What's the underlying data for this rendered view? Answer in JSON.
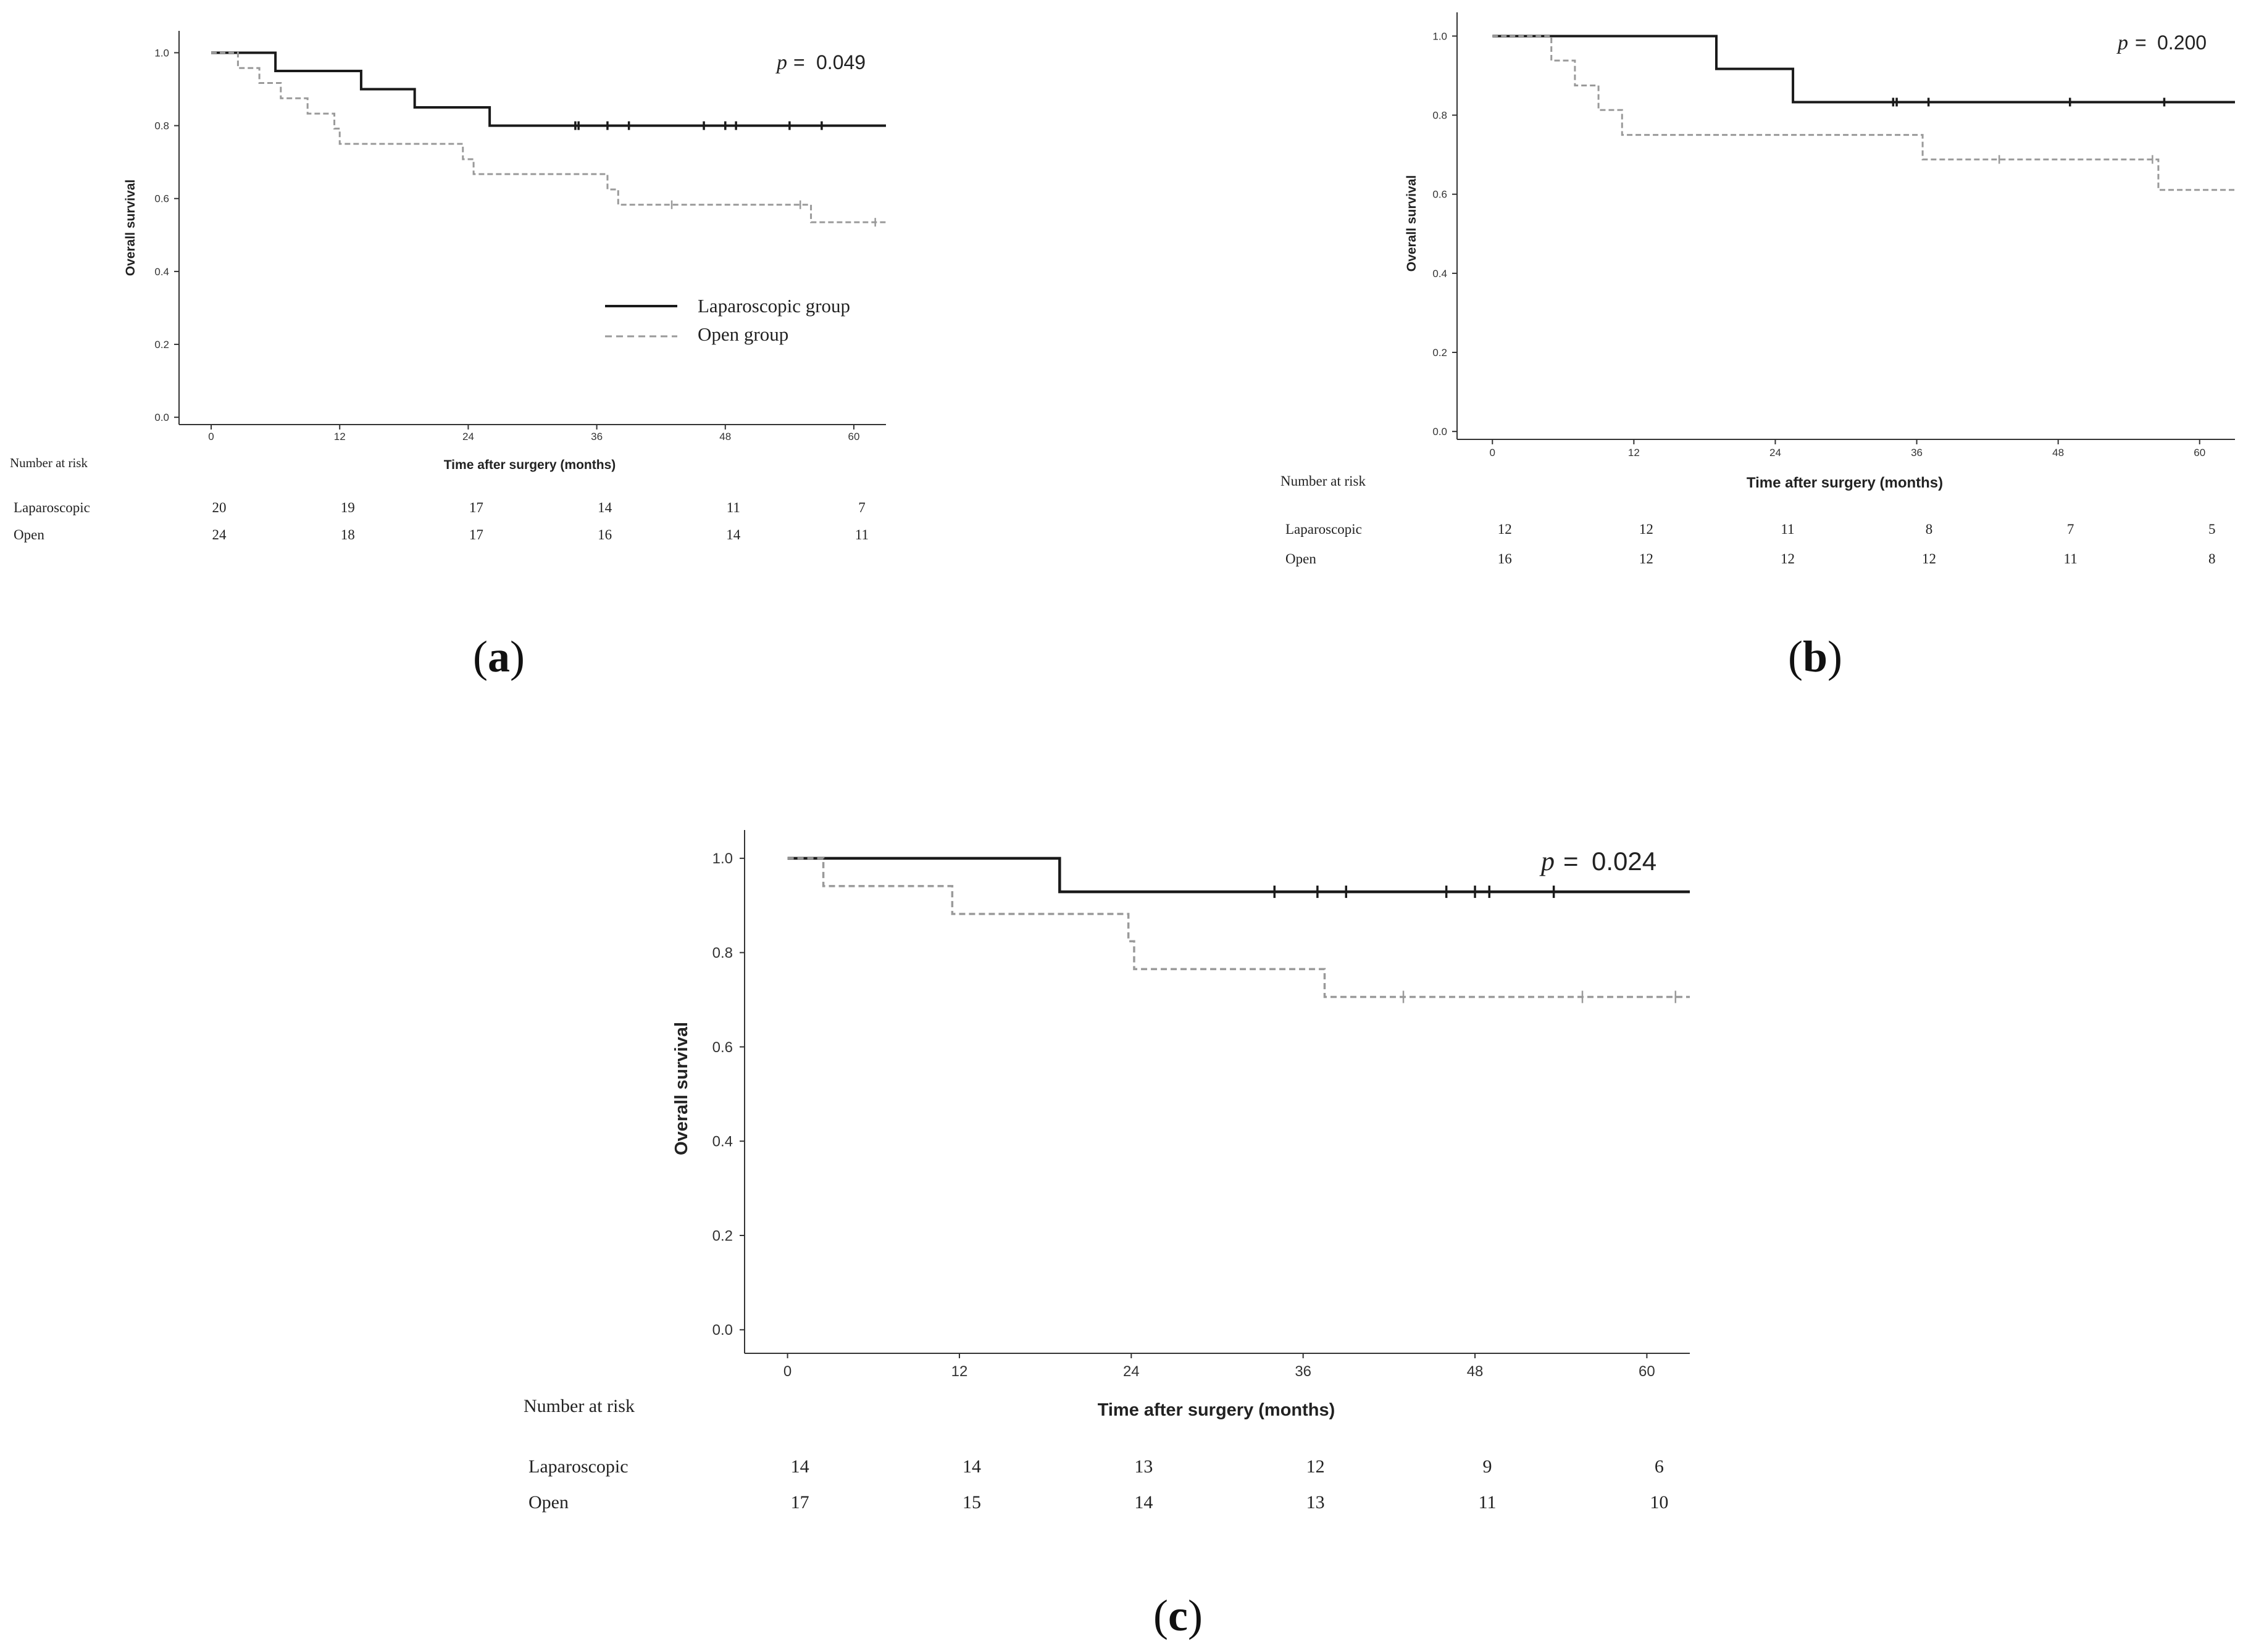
{
  "chart_data": [
    {
      "type": "line",
      "panel_label": "a",
      "title": "",
      "xlabel": "Time after surgery (months)",
      "ylabel": "Overall survival",
      "p_value": "0.049",
      "p_symbol": "p",
      "xlim": [
        -3,
        63
      ],
      "ylim": [
        -0.02,
        1.06
      ],
      "x_ticks": [
        "0",
        "12",
        "24",
        "36",
        "48",
        "60"
      ],
      "y_ticks": [
        "0.0",
        "0.2",
        "0.4",
        "0.6",
        "0.8",
        "1.0"
      ],
      "legend": {
        "position": "lower-right",
        "entries": [
          "Laparoscopic group",
          "Open group"
        ]
      },
      "series": [
        {
          "name": "Laparoscopic group",
          "style": "solid",
          "steps": [
            [
              0,
              1.0
            ],
            [
              6,
              0.95
            ],
            [
              14,
              0.9
            ],
            [
              19,
              0.85
            ],
            [
              26,
              0.8
            ],
            [
              63,
              0.8
            ]
          ],
          "censored": [
            34,
            34.3,
            37,
            39,
            46,
            48,
            49,
            54,
            57
          ]
        },
        {
          "name": "Open group",
          "style": "dashed",
          "steps": [
            [
              0,
              1.0
            ],
            [
              2.5,
              0.958
            ],
            [
              4.5,
              0.917
            ],
            [
              6.5,
              0.875
            ],
            [
              9,
              0.833
            ],
            [
              11.5,
              0.792
            ],
            [
              12,
              0.75
            ],
            [
              23.5,
              0.708
            ],
            [
              24.5,
              0.667
            ],
            [
              37,
              0.625
            ],
            [
              38,
              0.583
            ],
            [
              56,
              0.535
            ],
            [
              63,
              0.535
            ]
          ],
          "censored": [
            43,
            55,
            62
          ]
        }
      ],
      "risk_table": {
        "title": "Number at risk",
        "rows": [
          {
            "label": "Laparoscopic",
            "values": [
              "20",
              "19",
              "17",
              "14",
              "11",
              "7"
            ]
          },
          {
            "label": "Open",
            "values": [
              "24",
              "18",
              "17",
              "16",
              "14",
              "11"
            ]
          }
        ]
      }
    },
    {
      "type": "line",
      "panel_label": "b",
      "title": "",
      "xlabel": "Time after surgery (months)",
      "ylabel": "Overall survival",
      "p_value": "0.200",
      "p_symbol": "p",
      "xlim": [
        -3,
        63
      ],
      "ylim": [
        -0.02,
        1.06
      ],
      "x_ticks": [
        "0",
        "12",
        "24",
        "36",
        "48",
        "60"
      ],
      "y_ticks": [
        "0.0",
        "0.2",
        "0.4",
        "0.6",
        "0.8",
        "1.0"
      ],
      "series": [
        {
          "name": "Laparoscopic group",
          "style": "solid",
          "steps": [
            [
              0,
              1.0
            ],
            [
              19,
              0.917
            ],
            [
              25.5,
              0.833
            ],
            [
              63,
              0.833
            ]
          ],
          "censored": [
            34,
            34.3,
            37,
            49,
            57
          ]
        },
        {
          "name": "Open group",
          "style": "dashed",
          "steps": [
            [
              0,
              1.0
            ],
            [
              5,
              0.938
            ],
            [
              7,
              0.875
            ],
            [
              9,
              0.813
            ],
            [
              11,
              0.75
            ],
            [
              36.5,
              0.688
            ],
            [
              56.5,
              0.611
            ],
            [
              63,
              0.611
            ]
          ],
          "censored": [
            43,
            56
          ]
        }
      ],
      "risk_table": {
        "title": "Number at risk",
        "rows": [
          {
            "label": "Laparoscopic",
            "values": [
              "12",
              "12",
              "11",
              "8",
              "7",
              "5"
            ]
          },
          {
            "label": "Open",
            "values": [
              "16",
              "12",
              "12",
              "12",
              "11",
              "8"
            ]
          }
        ]
      }
    },
    {
      "type": "line",
      "panel_label": "c",
      "title": "",
      "xlabel": "Time after surgery (months)",
      "ylabel": "Overall survival",
      "p_value": "0.024",
      "p_symbol": "p",
      "xlim": [
        -3,
        63
      ],
      "ylim": [
        -0.05,
        1.06
      ],
      "x_ticks": [
        "0",
        "12",
        "24",
        "36",
        "48",
        "60"
      ],
      "y_ticks": [
        "0.0",
        "0.2",
        "0.4",
        "0.6",
        "0.8",
        "1.0"
      ],
      "series": [
        {
          "name": "Laparoscopic group",
          "style": "solid",
          "steps": [
            [
              0,
              1.0
            ],
            [
              19,
              0.929
            ],
            [
              63,
              0.929
            ]
          ],
          "censored": [
            34,
            37,
            39,
            46,
            48,
            49,
            53.5
          ]
        },
        {
          "name": "Open group",
          "style": "dashed",
          "steps": [
            [
              0,
              1.0
            ],
            [
              2.5,
              0.941
            ],
            [
              11.5,
              0.882
            ],
            [
              23.8,
              0.824
            ],
            [
              24.2,
              0.765
            ],
            [
              37.5,
              0.706
            ],
            [
              63,
              0.706
            ]
          ],
          "censored": [
            43,
            55.5,
            62
          ]
        }
      ],
      "risk_table": {
        "title": "Number at risk",
        "rows": [
          {
            "label": "Laparoscopic",
            "values": [
              "14",
              "14",
              "13",
              "12",
              "9",
              "6"
            ]
          },
          {
            "label": "Open",
            "values": [
              "17",
              "15",
              "14",
              "13",
              "11",
              "10"
            ]
          }
        ]
      }
    }
  ]
}
